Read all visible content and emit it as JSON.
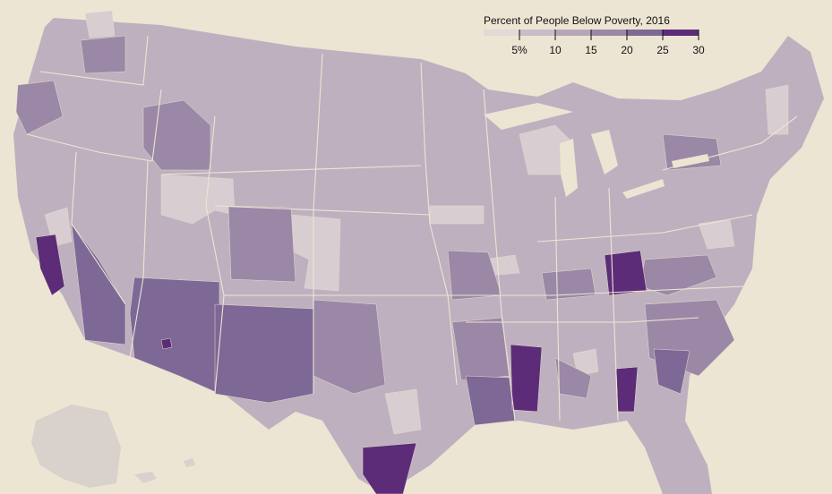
{
  "legend": {
    "title": "Percent of People Below Poverty, 2016",
    "thresholds": [
      5,
      10,
      15,
      20,
      25,
      30
    ],
    "tick_labels": [
      "5%",
      "10",
      "15",
      "20",
      "25",
      "30"
    ],
    "colors": [
      "#e2dad6",
      "#c9bcc8",
      "#b7a6ba",
      "#9b88a6",
      "#7e6896",
      "#5c2c78"
    ]
  },
  "colors": {
    "background": "#ede5d3",
    "state_border": "#ede5d3"
  }
}
